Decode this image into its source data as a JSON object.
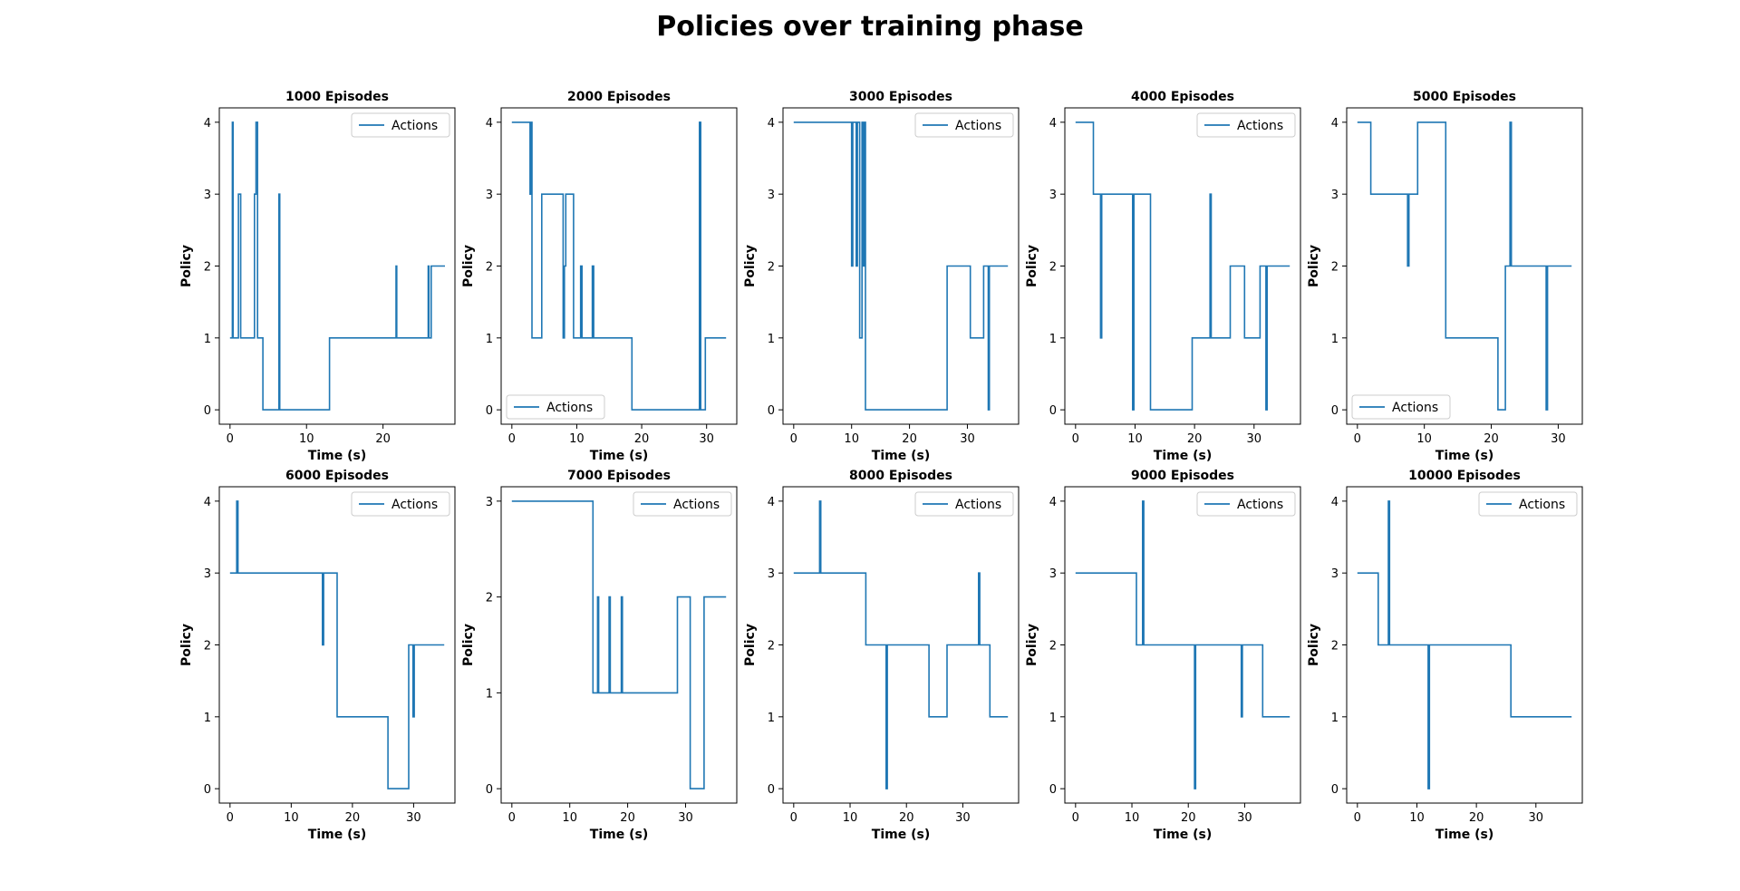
{
  "figure": {
    "title": "Policies over training phase"
  },
  "style": {
    "line_color": "#1f77b4",
    "axes_color": "#000000"
  },
  "chart_data": [
    {
      "type": "line",
      "title": "1000 Episodes",
      "xlabel": "Time (s)",
      "ylabel": "Policy",
      "xlim": [
        -1.4,
        29.4
      ],
      "ylim": [
        -0.2,
        4.2
      ],
      "xticks": [
        0,
        10,
        20
      ],
      "yticks": [
        0,
        1,
        2,
        3,
        4
      ],
      "legend": "upper right",
      "series": [
        {
          "name": "Actions",
          "x": [
            0,
            0.3,
            0.3,
            0.4,
            0.4,
            1.1,
            1.1,
            1.4,
            1.4,
            3.2,
            3.2,
            3.4,
            3.4,
            3.6,
            3.6,
            4.3,
            4.3,
            6.4,
            6.4,
            6.5,
            6.5,
            13,
            13,
            21.7,
            21.7,
            21.8,
            21.8,
            25.9,
            25.9,
            26,
            26,
            26.3,
            26.3,
            28.1
          ],
          "y": [
            1,
            1,
            4,
            4,
            1,
            1,
            3,
            3,
            1,
            1,
            3,
            3,
            4,
            4,
            1,
            1,
            0,
            0,
            3,
            3,
            0,
            0,
            1,
            1,
            2,
            2,
            1,
            1,
            2,
            2,
            1,
            1,
            2,
            2
          ]
        }
      ]
    },
    {
      "type": "line",
      "title": "2000 Episodes",
      "xlabel": "Time (s)",
      "ylabel": "Policy",
      "xlim": [
        -1.65,
        34.65
      ],
      "ylim": [
        -0.2,
        4.2
      ],
      "xticks": [
        0,
        10,
        20,
        30
      ],
      "yticks": [
        0,
        1,
        2,
        3,
        4
      ],
      "legend": "lower left",
      "series": [
        {
          "name": "Actions",
          "x": [
            0,
            2.8,
            2.8,
            2.9,
            2.9,
            3.1,
            3.1,
            4.6,
            4.6,
            7.9,
            7.9,
            8.1,
            8.1,
            8.3,
            8.3,
            9.5,
            9.5,
            10.6,
            10.6,
            10.8,
            10.8,
            12.4,
            12.4,
            12.6,
            12.6,
            18.5,
            18.5,
            28.9,
            28.9,
            29.1,
            29.1,
            29.8,
            29.8,
            33
          ],
          "y": [
            4,
            4,
            3,
            3,
            4,
            4,
            1,
            1,
            3,
            3,
            1,
            1,
            2,
            2,
            3,
            3,
            1,
            1,
            2,
            2,
            1,
            1,
            2,
            2,
            1,
            1,
            0,
            0,
            4,
            4,
            0,
            0,
            1,
            1
          ]
        }
      ]
    },
    {
      "type": "line",
      "title": "3000 Episodes",
      "xlabel": "Time (s)",
      "ylabel": "Policy",
      "xlim": [
        -1.85,
        38.85
      ],
      "ylim": [
        -0.2,
        4.2
      ],
      "xticks": [
        0,
        10,
        20,
        30
      ],
      "yticks": [
        0,
        1,
        2,
        3,
        4
      ],
      "legend": "upper right",
      "series": [
        {
          "name": "Actions",
          "x": [
            0,
            10,
            10,
            10.2,
            10.2,
            10.8,
            10.8,
            11,
            11,
            11.4,
            11.4,
            11.8,
            11.8,
            12,
            12,
            12.2,
            12.2,
            12.4,
            12.4,
            26.5,
            26.5,
            30.5,
            30.5,
            32.8,
            32.8,
            33.6,
            33.6,
            33.8,
            33.8,
            37
          ],
          "y": [
            4,
            4,
            2,
            2,
            4,
            4,
            2,
            2,
            4,
            4,
            1,
            1,
            4,
            4,
            2,
            2,
            4,
            4,
            0,
            0,
            2,
            2,
            1,
            1,
            2,
            2,
            0,
            0,
            2,
            2
          ]
        }
      ]
    },
    {
      "type": "line",
      "title": "4000 Episodes",
      "xlabel": "Time (s)",
      "ylabel": "Policy",
      "xlim": [
        -1.8,
        37.8
      ],
      "ylim": [
        -0.2,
        4.2
      ],
      "xticks": [
        0,
        10,
        20,
        30
      ],
      "yticks": [
        0,
        1,
        2,
        3,
        4
      ],
      "legend": "upper right",
      "series": [
        {
          "name": "Actions",
          "x": [
            0,
            3,
            3,
            4.2,
            4.2,
            4.4,
            4.4,
            9.6,
            9.6,
            9.8,
            9.8,
            12.6,
            12.6,
            19.6,
            19.6,
            22.6,
            22.6,
            22.8,
            22.8,
            26,
            26,
            28.4,
            28.4,
            31,
            31,
            32,
            32,
            32.2,
            32.2,
            36
          ],
          "y": [
            4,
            4,
            3,
            3,
            1,
            1,
            3,
            3,
            0,
            0,
            3,
            3,
            0,
            0,
            1,
            1,
            3,
            3,
            1,
            1,
            2,
            2,
            1,
            1,
            2,
            2,
            0,
            0,
            2,
            2
          ]
        }
      ]
    },
    {
      "type": "line",
      "title": "5000 Episodes",
      "xlabel": "Time (s)",
      "ylabel": "Policy",
      "xlim": [
        -1.6,
        33.6
      ],
      "ylim": [
        -0.2,
        4.2
      ],
      "xticks": [
        0,
        10,
        20,
        30
      ],
      "yticks": [
        0,
        1,
        2,
        3,
        4
      ],
      "legend": "lower left",
      "series": [
        {
          "name": "Actions",
          "x": [
            0,
            2,
            2,
            7.5,
            7.5,
            7.7,
            7.7,
            9,
            9,
            13.2,
            13.2,
            21,
            21,
            22.1,
            22.1,
            22.8,
            22.8,
            23,
            23,
            28.2,
            28.2,
            28.4,
            28.4,
            32
          ],
          "y": [
            4,
            4,
            3,
            3,
            2,
            2,
            3,
            3,
            4,
            4,
            1,
            1,
            0,
            0,
            2,
            2,
            4,
            4,
            2,
            2,
            0,
            0,
            2,
            2
          ]
        }
      ]
    },
    {
      "type": "line",
      "title": "6000 Episodes",
      "xlabel": "Time (s)",
      "ylabel": "Policy",
      "xlim": [
        -1.75,
        36.75
      ],
      "ylim": [
        -0.2,
        4.2
      ],
      "xticks": [
        0,
        10,
        20,
        30
      ],
      "yticks": [
        0,
        1,
        2,
        3,
        4
      ],
      "legend": "upper right",
      "series": [
        {
          "name": "Actions",
          "x": [
            0,
            1.1,
            1.1,
            1.3,
            1.3,
            15.1,
            15.1,
            15.3,
            15.3,
            17.5,
            17.5,
            25.8,
            25.8,
            29.2,
            29.2,
            29.9,
            29.9,
            30.1,
            30.1,
            35
          ],
          "y": [
            3,
            3,
            4,
            4,
            3,
            3,
            2,
            2,
            3,
            3,
            1,
            1,
            0,
            0,
            2,
            2,
            1,
            1,
            2,
            2
          ]
        }
      ]
    },
    {
      "type": "line",
      "title": "7000 Episodes",
      "xlabel": "Time (s)",
      "ylabel": "Policy",
      "xlim": [
        -1.85,
        38.85
      ],
      "ylim": [
        -0.15,
        3.15
      ],
      "xticks": [
        0,
        10,
        20,
        30
      ],
      "yticks": [
        0,
        1,
        2,
        3
      ],
      "legend": "upper right",
      "series": [
        {
          "name": "Actions",
          "x": [
            0,
            14,
            14,
            14.8,
            14.8,
            15,
            15,
            16.8,
            16.8,
            17,
            17,
            18.9,
            18.9,
            19.1,
            19.1,
            28.6,
            28.6,
            30.8,
            30.8,
            33.2,
            33.2,
            37
          ],
          "y": [
            3,
            3,
            1,
            1,
            2,
            2,
            1,
            1,
            2,
            2,
            1,
            1,
            2,
            2,
            1,
            1,
            2,
            2,
            0,
            0,
            2,
            2
          ]
        }
      ]
    },
    {
      "type": "line",
      "title": "8000 Episodes",
      "xlabel": "Time (s)",
      "ylabel": "Policy",
      "xlim": [
        -1.9,
        39.9
      ],
      "ylim": [
        -0.2,
        4.2
      ],
      "xticks": [
        0,
        10,
        20,
        30
      ],
      "yticks": [
        0,
        1,
        2,
        3,
        4
      ],
      "legend": "upper right",
      "series": [
        {
          "name": "Actions",
          "x": [
            0,
            4.6,
            4.6,
            4.8,
            4.8,
            12.8,
            12.8,
            16.4,
            16.4,
            16.6,
            16.6,
            24,
            24,
            27.2,
            27.2,
            32.8,
            32.8,
            33,
            33,
            34.8,
            34.8,
            38
          ],
          "y": [
            3,
            3,
            4,
            4,
            3,
            3,
            2,
            2,
            0,
            0,
            2,
            2,
            1,
            1,
            2,
            2,
            3,
            3,
            2,
            2,
            1,
            1
          ]
        }
      ]
    },
    {
      "type": "line",
      "title": "9000 Episodes",
      "xlabel": "Time (s)",
      "ylabel": "Policy",
      "xlim": [
        -1.9,
        39.9
      ],
      "ylim": [
        -0.2,
        4.2
      ],
      "xticks": [
        0,
        10,
        20,
        30
      ],
      "yticks": [
        0,
        1,
        2,
        3,
        4
      ],
      "legend": "upper right",
      "series": [
        {
          "name": "Actions",
          "x": [
            0,
            10.8,
            10.8,
            11.9,
            11.9,
            12.1,
            12.1,
            21.1,
            21.1,
            21.3,
            21.3,
            29.4,
            29.4,
            29.6,
            29.6,
            33.2,
            33.2,
            38
          ],
          "y": [
            3,
            3,
            2,
            2,
            4,
            4,
            2,
            2,
            0,
            0,
            2,
            2,
            1,
            1,
            2,
            2,
            1,
            1
          ]
        }
      ]
    },
    {
      "type": "line",
      "title": "10000 Episodes",
      "xlabel": "Time (s)",
      "ylabel": "Policy",
      "xlim": [
        -1.8,
        37.8
      ],
      "ylim": [
        -0.2,
        4.2
      ],
      "xticks": [
        0,
        10,
        20,
        30
      ],
      "yticks": [
        0,
        1,
        2,
        3,
        4
      ],
      "legend": "upper right",
      "series": [
        {
          "name": "Actions",
          "x": [
            0,
            3.5,
            3.5,
            5.2,
            5.2,
            5.4,
            5.4,
            11.9,
            11.9,
            12.1,
            12.1,
            25.8,
            25.8,
            36
          ],
          "y": [
            3,
            3,
            2,
            2,
            4,
            4,
            2,
            2,
            0,
            0,
            2,
            2,
            1,
            1
          ]
        }
      ]
    }
  ]
}
